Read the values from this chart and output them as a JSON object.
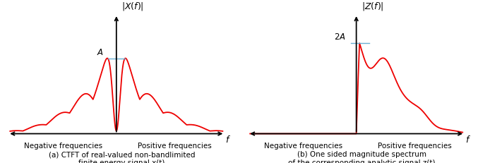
{
  "fig_width": 6.77,
  "fig_height": 2.31,
  "dpi": 100,
  "background_color": "#ffffff",
  "signal_color": "#ee0000",
  "axis_color": "#000000",
  "annotation_color": "#6ab0d4",
  "caption_a": "(a) CTFT of real-valued non-bandlimited\nfinite energy signal x(t)",
  "caption_b": "(b) One sided magnitude spectrum\nof the corresponding analytic signal z(t)",
  "ylabel_a": "$|X(f)|$",
  "ylabel_b": "$|Z(f)|$",
  "xlabel": "$f$",
  "label_neg": "Negative frequencies",
  "label_pos": "Positive frequencies",
  "annotation_a": "$A$",
  "annotation_b": "$2A$",
  "caption_fontsize": 7.5,
  "label_fontsize": 7.5,
  "axis_label_fontsize": 9,
  "annotation_fontsize": 8.5
}
